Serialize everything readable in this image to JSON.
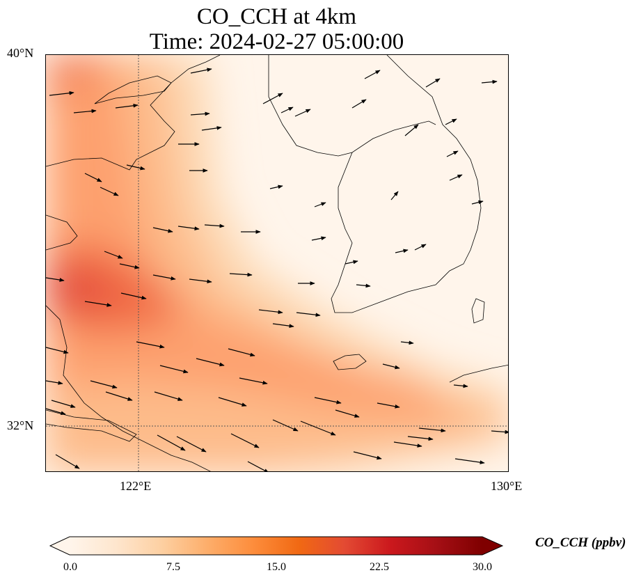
{
  "title": {
    "line1": "CO_CCH at 4km",
    "line2": "Time: 2024-02-27 05:00:00"
  },
  "map": {
    "lat_range": [
      31.0,
      40.0
    ],
    "lon_range": [
      120.0,
      130.0
    ],
    "lat_ticks": [
      {
        "value": 40,
        "label": "40°N"
      },
      {
        "value": 32,
        "label": "32°N"
      }
    ],
    "lon_ticks": [
      {
        "value": 122,
        "label": "122°E"
      },
      {
        "value": 130,
        "label": "130°E"
      }
    ],
    "gridlines": true,
    "field": "CO_CCH",
    "units": "ppbv",
    "plume_description_colors": [
      "#fff5eb",
      "#fdd9b4",
      "#fdae77",
      "#f16b44",
      "#e4503f"
    ]
  },
  "colorbar": {
    "label": "CO_CCH (ppbv)",
    "min": 0.0,
    "max": 30.0,
    "extend": "both",
    "ticks": [
      "0.0",
      "7.5",
      "15.0",
      "22.5",
      "30.0"
    ],
    "colors": [
      "#fff5eb",
      "#fee6ce",
      "#fdd0a2",
      "#fdae6b",
      "#fd8d3c",
      "#f16913",
      "#e34a33",
      "#cb181d",
      "#a50f15",
      "#7f0000"
    ]
  }
}
